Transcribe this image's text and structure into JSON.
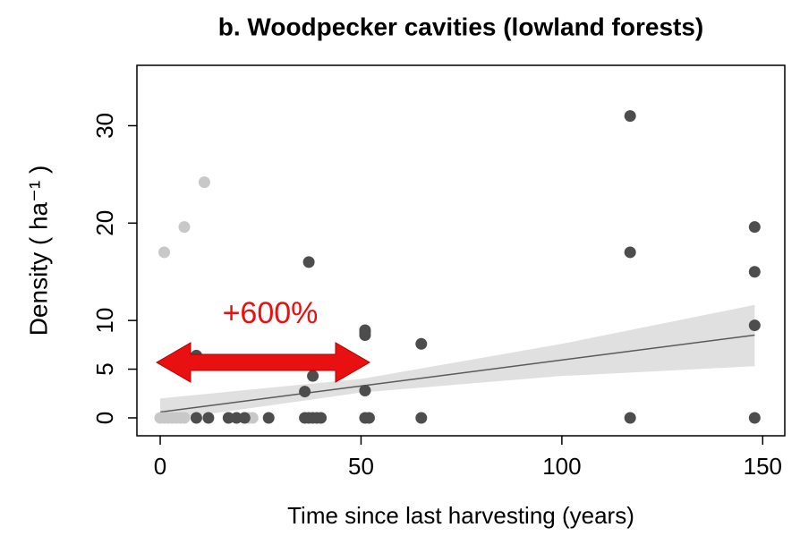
{
  "chart_data": {
    "type": "scatter",
    "title": "b. Woodpecker cavities (lowland forests)",
    "x_label": "Time since last harvesting (years)",
    "y_label": "Density ( ha⁻¹ )",
    "annotation": "+600%",
    "xlim": [
      -5.8,
      155.5
    ],
    "ylim": [
      -1.84,
      36.2
    ],
    "xticks": [
      0,
      50,
      100,
      150
    ],
    "yticks": [
      0,
      5,
      10,
      20,
      30
    ],
    "series": [
      {
        "color": "#c8c8c8",
        "x": [
          1,
          6,
          11,
          0,
          1,
          2,
          3,
          4,
          5,
          6,
          22,
          23
        ],
        "values": [
          17,
          19.6,
          24.2,
          0,
          0,
          0,
          0,
          0,
          0,
          0,
          0,
          0
        ]
      },
      {
        "color": "#4d4d4d",
        "x": [
          117,
          117,
          117,
          148,
          148,
          148,
          148,
          37,
          38,
          36,
          51,
          51,
          51,
          51,
          51,
          52,
          65,
          65,
          9,
          9,
          12,
          17,
          19,
          21,
          27,
          36,
          37,
          38,
          39,
          40
        ],
        "values": [
          31,
          17,
          0,
          19.6,
          15,
          9.5,
          0,
          16,
          4.3,
          2.7,
          9,
          8.5,
          8.8,
          2.8,
          0,
          0,
          7.6,
          0,
          6.4,
          0,
          0,
          0,
          0,
          0,
          0,
          0,
          0,
          0,
          0,
          0
        ]
      }
    ],
    "band": {
      "color": "#e0e0e0",
      "x": [
        0,
        50,
        100,
        148
      ],
      "lower": [
        -0.3,
        2.6,
        4.3,
        5.3
      ],
      "upper": [
        2.0,
        4.0,
        7.6,
        11.6
      ]
    },
    "fit": {
      "color": "#5a5a5a",
      "x": [
        0,
        148
      ],
      "values": [
        0.6,
        8.5
      ]
    }
  }
}
